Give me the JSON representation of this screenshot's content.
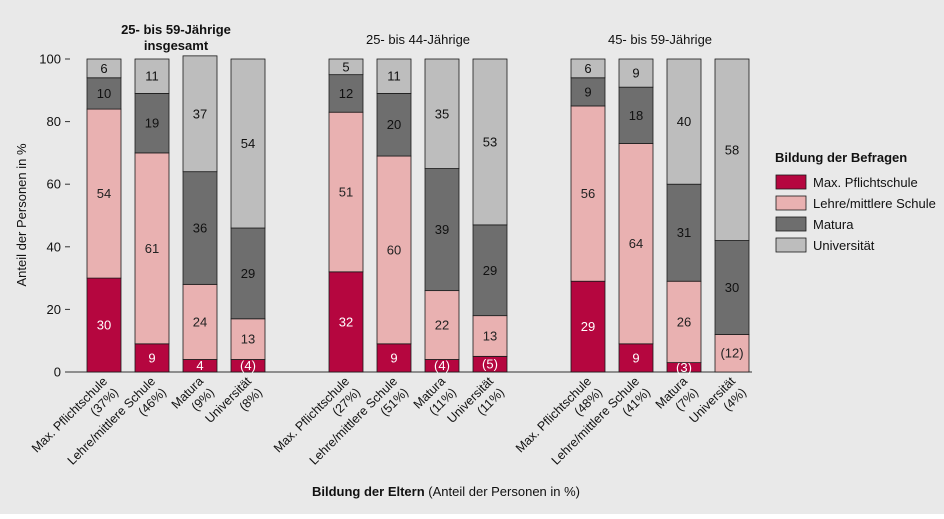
{
  "chart_data": {
    "type": "bar",
    "stacked": true,
    "ylabel": "Anteil der Personen in %",
    "ylim": [
      0,
      100
    ],
    "yticks": [
      0,
      20,
      40,
      60,
      80,
      100
    ],
    "xlabel_bold": "Bildung der Eltern",
    "xlabel_rest": " (Anteil der Personen in %)",
    "legend": {
      "title": "Bildung der Befragen",
      "placement": "right",
      "entries": [
        "Max. Pflichtschule",
        "Lehre/mittlere Schule",
        "Matura",
        "Universität"
      ]
    },
    "colors": [
      "#b5063f",
      "#e9b1b1",
      "#6e6e6e",
      "#bdbdbd"
    ],
    "label_colors": [
      "#ffffff",
      "#222222",
      "#111111",
      "#111111"
    ],
    "groups": [
      {
        "title_lines": [
          "25- bis 59-Jährige",
          "insgesamt"
        ],
        "title_bold": true,
        "bars": [
          {
            "label": "Max. Pflichtschule",
            "share": "(37%)",
            "values": [
              30,
              54,
              10,
              6
            ],
            "labels": [
              "30",
              "54",
              "10",
              "6"
            ]
          },
          {
            "label": "Lehre/mittlere Schule",
            "share": "(46%)",
            "values": [
              9,
              61,
              19,
              11
            ],
            "labels": [
              "9",
              "61",
              "19",
              "11"
            ]
          },
          {
            "label": "Matura",
            "share": "(9%)",
            "values": [
              4,
              24,
              36,
              37
            ],
            "labels": [
              "4",
              "24",
              "36",
              "37"
            ]
          },
          {
            "label": "Universität",
            "share": "(8%)",
            "values": [
              4,
              13,
              29,
              54
            ],
            "labels": [
              "(4)",
              "13",
              "29",
              "54"
            ]
          }
        ]
      },
      {
        "title_lines": [
          "25- bis 44-Jährige"
        ],
        "title_bold": false,
        "bars": [
          {
            "label": "Max. Pflichtschule",
            "share": "(27%)",
            "values": [
              32,
              51,
              12,
              5
            ],
            "labels": [
              "32",
              "51",
              "12",
              "5"
            ]
          },
          {
            "label": "Lehre/mittlere Schule",
            "share": "(51%)",
            "values": [
              9,
              60,
              20,
              11
            ],
            "labels": [
              "9",
              "60",
              "20",
              "11"
            ]
          },
          {
            "label": "Matura",
            "share": "(11%)",
            "values": [
              4,
              22,
              39,
              35
            ],
            "labels": [
              "(4)",
              "22",
              "39",
              "35"
            ]
          },
          {
            "label": "Universität",
            "share": "(11%)",
            "values": [
              5,
              13,
              29,
              53
            ],
            "labels": [
              "(5)",
              "13",
              "29",
              "53"
            ]
          }
        ]
      },
      {
        "title_lines": [
          "45- bis 59-Jährige"
        ],
        "title_bold": false,
        "bars": [
          {
            "label": "Max. Pflichtschule",
            "share": "(48%)",
            "values": [
              29,
              56,
              9,
              6
            ],
            "labels": [
              "29",
              "56",
              "9",
              "6"
            ]
          },
          {
            "label": "Lehre/mittlere Schule",
            "share": "(41%)",
            "values": [
              9,
              64,
              18,
              9
            ],
            "labels": [
              "9",
              "64",
              "18",
              "9"
            ]
          },
          {
            "label": "Matura",
            "share": "(7%)",
            "values": [
              3,
              26,
              31,
              40
            ],
            "labels": [
              "(3)",
              "26",
              "31",
              "40"
            ]
          },
          {
            "label": "Universität",
            "share": "(4%)",
            "values": [
              0,
              12,
              30,
              58
            ],
            "labels": [
              "",
              "(12)",
              "30",
              "58"
            ]
          }
        ]
      }
    ]
  }
}
